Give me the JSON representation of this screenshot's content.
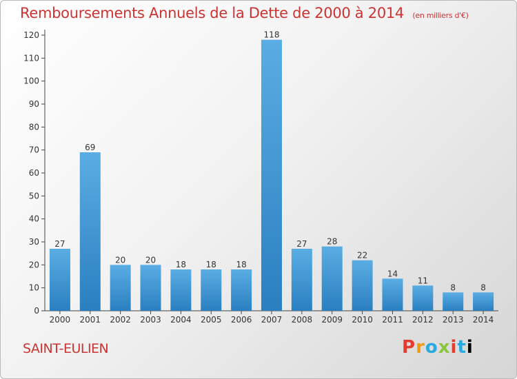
{
  "title": "Remboursements Annuels de la Dette de 2000 à 2014",
  "unit": "(en milliers d'€)",
  "place": "SAINT-EULIEN",
  "logo_text": "Proxiti",
  "colors": {
    "bar_light": "#5aade3",
    "bar_dark": "#2a7fc0",
    "title": "#cc3333"
  },
  "chart_data": {
    "type": "bar",
    "categories": [
      "2000",
      "2001",
      "2002",
      "2003",
      "2004",
      "2005",
      "2006",
      "2007",
      "2008",
      "2009",
      "2010",
      "2011",
      "2012",
      "2013",
      "2014"
    ],
    "values": [
      27,
      69,
      20,
      20,
      18,
      18,
      18,
      118,
      27,
      28,
      22,
      14,
      11,
      8,
      8
    ],
    "ylim": [
      0,
      120
    ],
    "yticks": [
      0,
      10,
      20,
      30,
      40,
      50,
      60,
      70,
      80,
      90,
      100,
      110,
      120
    ],
    "grid": false,
    "data_labels": true
  }
}
